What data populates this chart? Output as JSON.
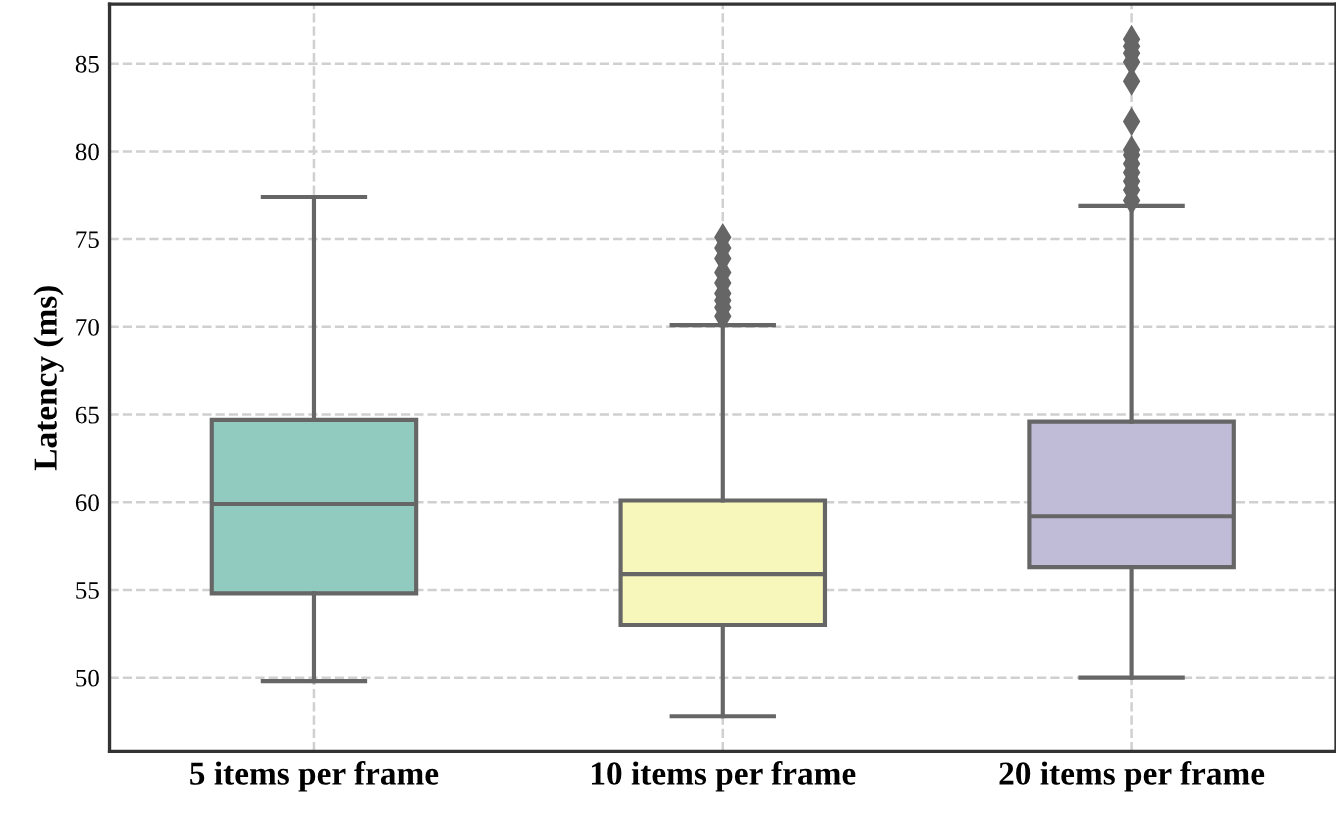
{
  "chart_data": {
    "type": "box",
    "ylabel": "Latency (ms)",
    "categories": [
      "5 items per frame",
      "10 items per frame",
      "20 items per frame"
    ],
    "colors": [
      "#91cbbf",
      "#f7f6bb",
      "#c0bcd8"
    ],
    "boxes": [
      {
        "low": 49.8,
        "q1": 54.8,
        "median": 59.9,
        "q3": 64.7,
        "high": 77.4
      },
      {
        "low": 47.8,
        "q1": 53.0,
        "median": 55.9,
        "q3": 60.1,
        "high": 70.1,
        "outliers": [
          70.6,
          71.1,
          71.5,
          71.9,
          72.5,
          73.1,
          73.9,
          74.5,
          75.1
        ]
      },
      {
        "low": 50.0,
        "q1": 56.3,
        "median": 59.2,
        "q3": 64.6,
        "high": 76.9,
        "outliers": [
          77.2,
          77.8,
          78.3,
          78.8,
          79.3,
          79.8,
          80.1,
          81.7,
          84.0,
          85.1,
          85.6,
          86.0,
          86.4
        ]
      }
    ],
    "ylim": [
      45.8,
      88.4
    ],
    "yticks": [
      50,
      55,
      60,
      65,
      70,
      75,
      80,
      85
    ],
    "grid": true
  }
}
